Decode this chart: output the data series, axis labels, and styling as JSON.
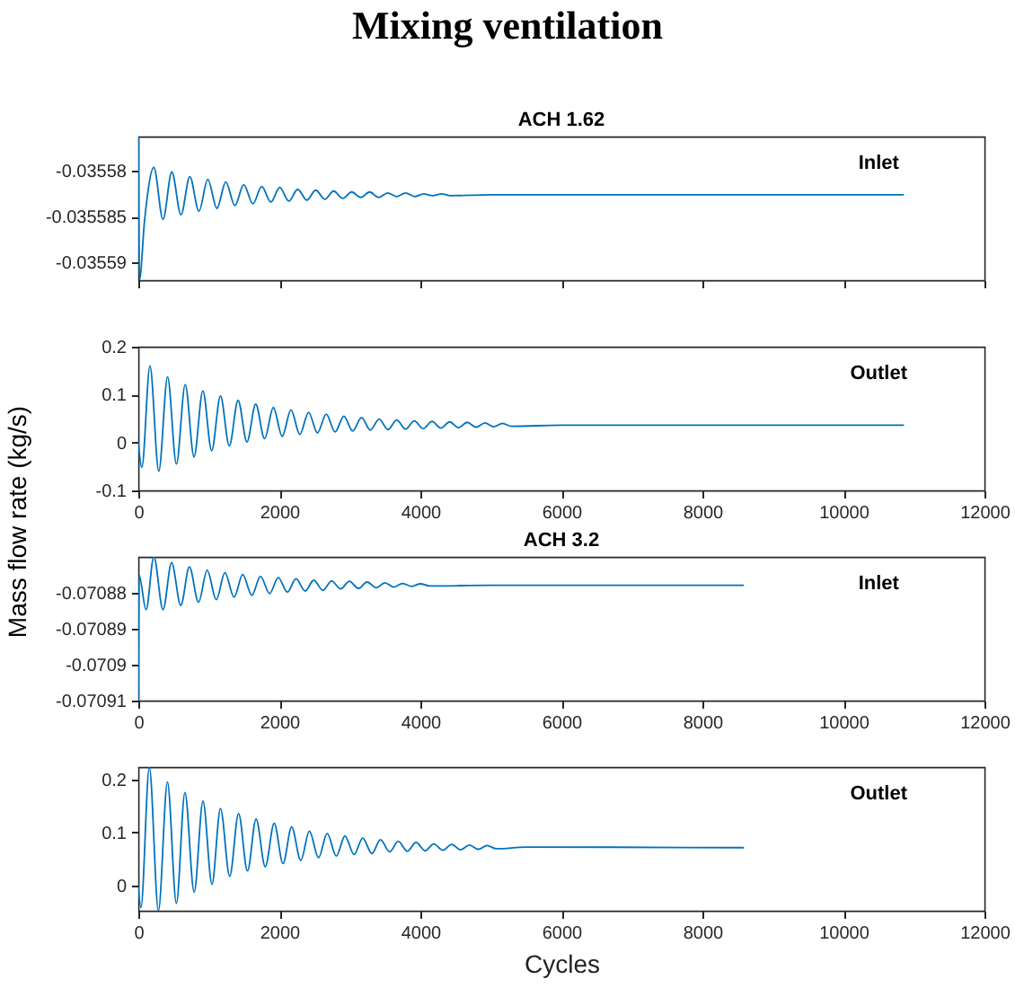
{
  "chart_data": [
    {
      "type": "line",
      "title": "Mixing ventilation",
      "subtitle": "ACH 1.62",
      "annotations": [
        "Inlet"
      ],
      "tick_labels": "y",
      "xlim": [
        0,
        12000
      ],
      "xticks": [
        0,
        2000,
        4000,
        6000,
        8000,
        10000,
        12000
      ],
      "ylim": [
        -0.035592,
        -0.0355762
      ],
      "yticks": [
        -0.03559,
        -0.035585,
        -0.03558
      ],
      "x": [
        0,
        15,
        90,
        220,
        350,
        475,
        605,
        730,
        860,
        985,
        1115,
        1240,
        1370,
        1495,
        1625,
        1750,
        1880,
        2005,
        2135,
        2260,
        2390,
        2515,
        2645,
        2770,
        2900,
        3025,
        3155,
        3280,
        3410,
        3535,
        3665,
        3790,
        3920,
        4045,
        4175,
        4300,
        4430,
        5000,
        10850
      ],
      "series": [
        {
          "color": "#0072bd",
          "values": [
            -0.0355762,
            -0.035592,
            -0.0355853,
            -0.0355796,
            -0.0355853,
            -0.0355801,
            -0.0355848,
            -0.0355806,
            -0.0355844,
            -0.0355809,
            -0.0355841,
            -0.0355812,
            -0.0355838,
            -0.0355815,
            -0.0355836,
            -0.0355817,
            -0.0355834,
            -0.0355818,
            -0.0355833,
            -0.035582,
            -0.0355832,
            -0.0355821,
            -0.0355831,
            -0.0355822,
            -0.035583,
            -0.0355823,
            -0.0355829,
            -0.0355823,
            -0.0355829,
            -0.0355824,
            -0.0355828,
            -0.0355824,
            -0.0355828,
            -0.0355825,
            -0.0355827,
            -0.0355825,
            -0.0355827,
            -0.0355826,
            -0.0355826
          ]
        }
      ]
    },
    {
      "type": "line",
      "ylabel": "Mass flow rate (kg/s)",
      "annotations": [
        "Outlet"
      ],
      "xlim": [
        0,
        12000
      ],
      "xticks": [
        0,
        2000,
        4000,
        6000,
        8000,
        10000,
        12000
      ],
      "ylim": [
        -0.1,
        0.2
      ],
      "yticks": [
        -0.1,
        0,
        0.1,
        0.2
      ],
      "x": [
        0,
        50,
        165,
        290,
        415,
        540,
        665,
        790,
        915,
        1040,
        1165,
        1290,
        1415,
        1540,
        1665,
        1790,
        1915,
        2040,
        2165,
        2290,
        2415,
        2540,
        2665,
        2790,
        2915,
        3040,
        3165,
        3290,
        3415,
        3540,
        3665,
        3790,
        3915,
        4040,
        4165,
        4290,
        4415,
        4540,
        4665,
        4790,
        4915,
        5040,
        5165,
        5290,
        6000,
        10850
      ],
      "series": [
        {
          "color": "#0072bd",
          "values": [
            0,
            -0.052,
            0.16,
            -0.06,
            0.137,
            -0.045,
            0.121,
            -0.03,
            0.108,
            -0.017,
            0.097,
            -0.007,
            0.088,
            0.001,
            0.08,
            0.008,
            0.073,
            0.013,
            0.068,
            0.017,
            0.063,
            0.02,
            0.059,
            0.022,
            0.055,
            0.024,
            0.052,
            0.026,
            0.049,
            0.027,
            0.047,
            0.028,
            0.045,
            0.029,
            0.044,
            0.03,
            0.043,
            0.031,
            0.042,
            0.032,
            0.041,
            0.033,
            0.04,
            0.034,
            0.036,
            0.036
          ]
        }
      ]
    },
    {
      "type": "line",
      "title": "ACH 3.2",
      "annotations": [
        "Inlet"
      ],
      "xlim": [
        0,
        12000
      ],
      "xticks": [
        0,
        2000,
        4000,
        6000,
        8000,
        10000,
        12000
      ],
      "ylim": [
        -0.07091,
        -0.07087
      ],
      "yticks": [
        -0.07091,
        -0.0709,
        -0.07089,
        -0.07088
      ],
      "x": [
        0,
        10,
        110,
        220,
        350,
        472,
        602,
        724,
        854,
        976,
        1106,
        1228,
        1358,
        1480,
        1610,
        1732,
        1862,
        1984,
        2114,
        2236,
        2366,
        2488,
        2618,
        2740,
        2870,
        2992,
        3122,
        3244,
        3374,
        3496,
        3626,
        3748,
        3878,
        4000,
        4130,
        5000,
        8580
      ],
      "series": [
        {
          "color": "#0072bd",
          "values": [
            -0.07091,
            -0.0708751,
            -0.0708847,
            -0.07087,
            -0.0708847,
            -0.0708716,
            -0.0708835,
            -0.0708728,
            -0.0708826,
            -0.0708737,
            -0.0708819,
            -0.0708744,
            -0.0708812,
            -0.0708749,
            -0.0708807,
            -0.0708754,
            -0.0708802,
            -0.0708758,
            -0.0708798,
            -0.0708761,
            -0.0708795,
            -0.0708765,
            -0.0708793,
            -0.0708767,
            -0.0708789,
            -0.0708768,
            -0.0708788,
            -0.070877,
            -0.0708786,
            -0.0708772,
            -0.0708784,
            -0.0708774,
            -0.0708782,
            -0.0708775,
            -0.0708781,
            -0.0708779,
            -0.0708779
          ]
        }
      ]
    },
    {
      "type": "line",
      "xlabel": "Cycles",
      "annotations": [
        "Outlet"
      ],
      "xlim": [
        0,
        12000
      ],
      "xticks": [
        0,
        2000,
        4000,
        6000,
        8000,
        10000,
        12000
      ],
      "ylim": [
        -0.048,
        0.223
      ],
      "yticks": [
        0,
        0.1,
        0.2
      ],
      "x": [
        0,
        37,
        156,
        285,
        413,
        540,
        661,
        792,
        917,
        1044,
        1165,
        1296,
        1422,
        1548,
        1670,
        1800,
        1927,
        2052,
        2174,
        2304,
        2426,
        2556,
        2678,
        2808,
        2930,
        3060,
        3182,
        3312,
        3434,
        3564,
        3686,
        3816,
        3938,
        4068,
        4190,
        4320,
        4442,
        4572,
        4694,
        4824,
        4946,
        5076,
        5500,
        8580
      ],
      "series": [
        {
          "color": "#0072bd",
          "values": [
            -0.004,
            -0.042,
            0.223,
            -0.048,
            0.195,
            -0.034,
            0.175,
            -0.013,
            0.159,
            0.002,
            0.145,
            0.017,
            0.135,
            0.027,
            0.125,
            0.035,
            0.117,
            0.041,
            0.11,
            0.047,
            0.102,
            0.052,
            0.098,
            0.055,
            0.093,
            0.058,
            0.089,
            0.06,
            0.086,
            0.063,
            0.083,
            0.064,
            0.081,
            0.065,
            0.078,
            0.066,
            0.077,
            0.067,
            0.076,
            0.068,
            0.075,
            0.069,
            0.072,
            0.071
          ]
        }
      ]
    }
  ]
}
